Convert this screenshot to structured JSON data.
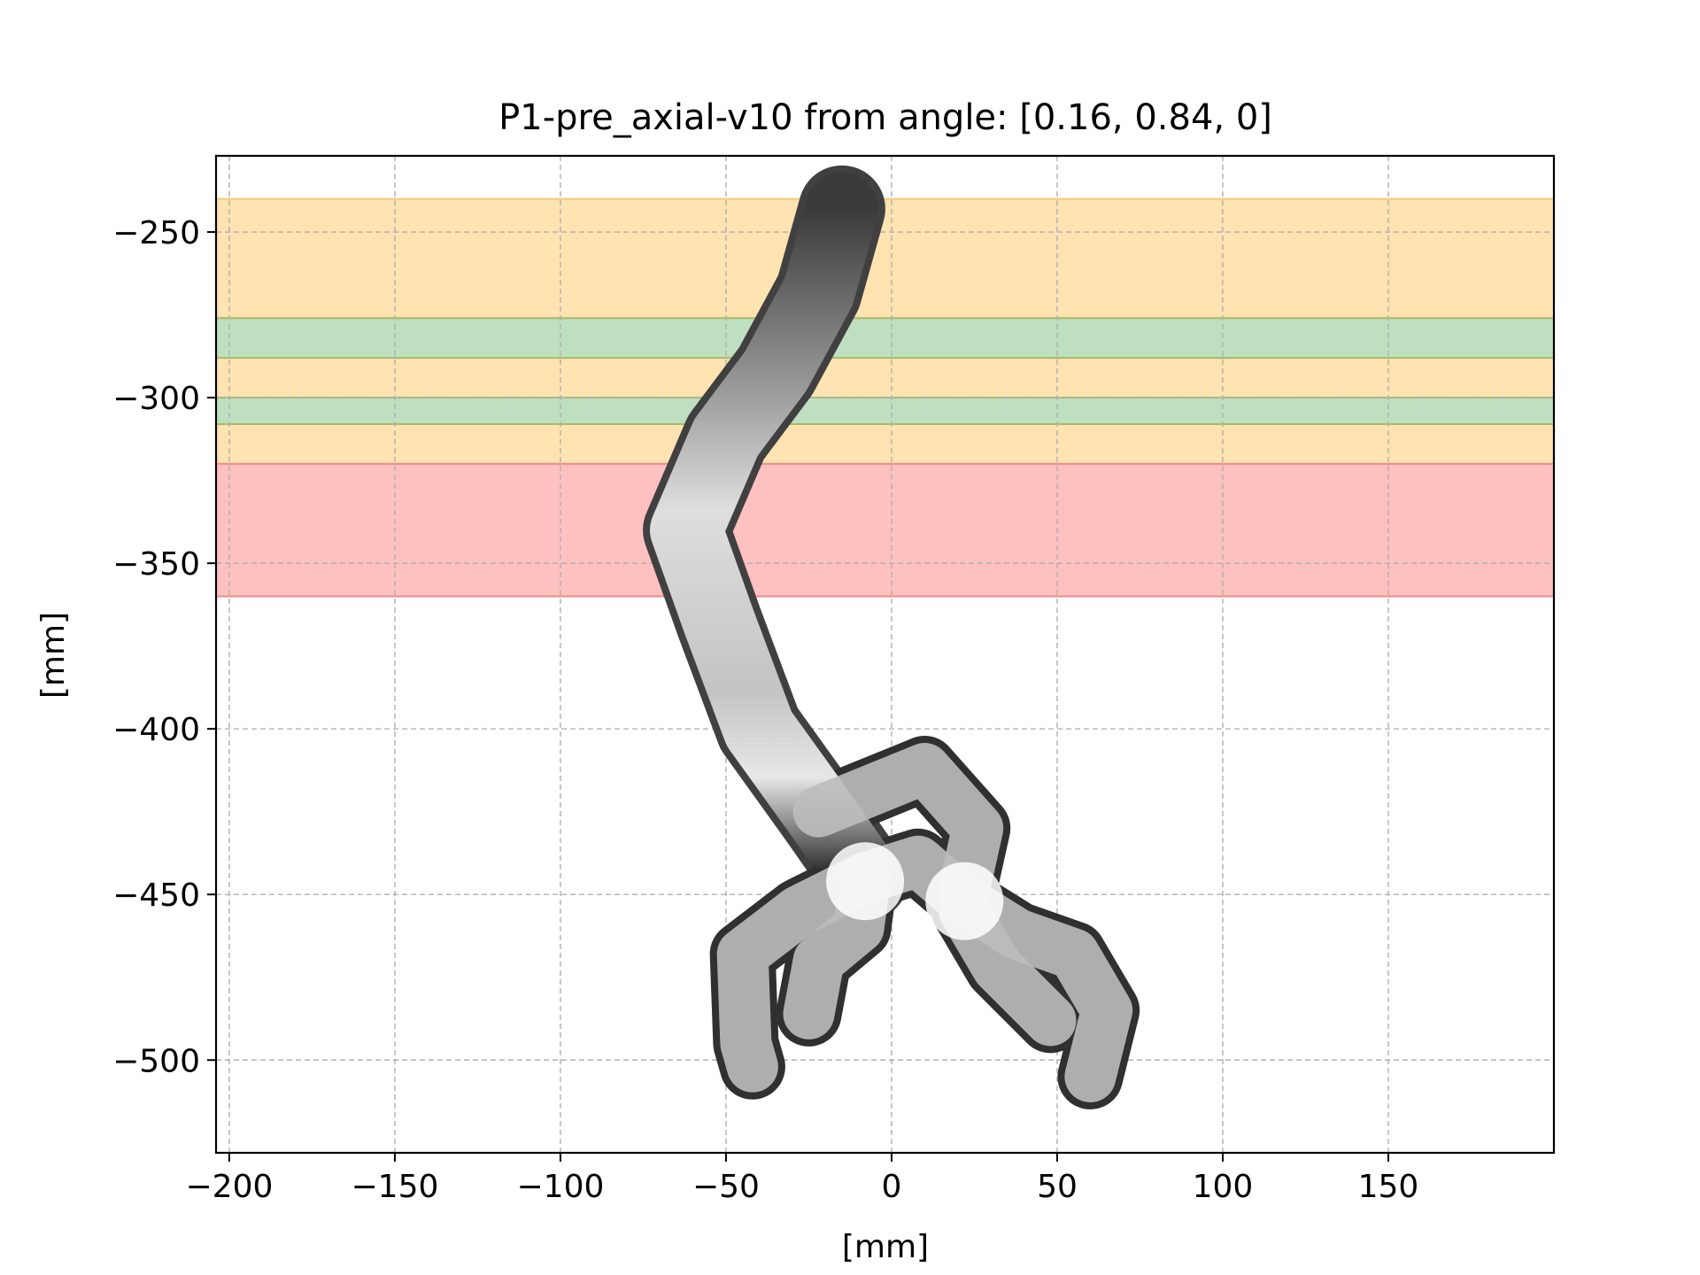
{
  "chart_data": {
    "type": "scatter",
    "title": "P1-pre_axial-v10 from angle: [0.16, 0.84, 0]",
    "xlabel": "[mm]",
    "ylabel": "[mm]",
    "xlim": [
      -204,
      200
    ],
    "ylim": [
      -528,
      -227
    ],
    "xticks": [
      -200,
      -150,
      -100,
      -50,
      0,
      50,
      100,
      150
    ],
    "yticks": [
      -250,
      -300,
      -350,
      -400,
      -450,
      -500
    ],
    "xtick_labels": [
      "−200",
      "−150",
      "−100",
      "−50",
      "0",
      "50",
      "100",
      "150"
    ],
    "ytick_labels": [
      "−250",
      "−300",
      "−350",
      "−400",
      "−450",
      "−500"
    ],
    "grid": true,
    "bands": [
      {
        "y_from": -240,
        "y_to": -320,
        "color": "#ffe3b0",
        "edge": "#f5c97a"
      },
      {
        "y_from": -276,
        "y_to": -288,
        "color": "#bfe0c0",
        "edge": "#a8b86a"
      },
      {
        "y_from": -300,
        "y_to": -308,
        "color": "#bfe0c0",
        "edge": "#a8b86a"
      },
      {
        "y_from": -320,
        "y_to": -360,
        "color": "#ffc0c0",
        "edge": "#f08a8a"
      }
    ],
    "vessel": {
      "description_color_dark": "#2a2a2a",
      "description_color_light": "#f4f4f4",
      "centerline": [
        {
          "x": -15,
          "y": -243
        },
        {
          "x": -22,
          "y": -268
        },
        {
          "x": -35,
          "y": -292
        },
        {
          "x": -50,
          "y": -312
        },
        {
          "x": -62,
          "y": -340
        },
        {
          "x": -52,
          "y": -368
        },
        {
          "x": -40,
          "y": -400
        },
        {
          "x": -22,
          "y": -425
        },
        {
          "x": -8,
          "y": -445
        }
      ],
      "branches": [
        [
          {
            "x": -8,
            "y": -445
          },
          {
            "x": -28,
            "y": -455
          },
          {
            "x": -45,
            "y": -468
          },
          {
            "x": -44,
            "y": -495
          },
          {
            "x": -42,
            "y": -502
          }
        ],
        [
          {
            "x": -8,
            "y": -445
          },
          {
            "x": -10,
            "y": -460
          },
          {
            "x": -22,
            "y": -470
          },
          {
            "x": -25,
            "y": -486
          }
        ],
        [
          {
            "x": -8,
            "y": -445
          },
          {
            "x": 8,
            "y": -440
          },
          {
            "x": 22,
            "y": -452
          },
          {
            "x": 38,
            "y": -462
          },
          {
            "x": 55,
            "y": -468
          },
          {
            "x": 65,
            "y": -485
          },
          {
            "x": 60,
            "y": -505
          }
        ],
        [
          {
            "x": 22,
            "y": -455
          },
          {
            "x": 32,
            "y": -472
          },
          {
            "x": 48,
            "y": -488
          }
        ],
        [
          {
            "x": -22,
            "y": -425
          },
          {
            "x": 10,
            "y": -412
          },
          {
            "x": 26,
            "y": -430
          },
          {
            "x": 22,
            "y": -448
          }
        ]
      ]
    }
  }
}
